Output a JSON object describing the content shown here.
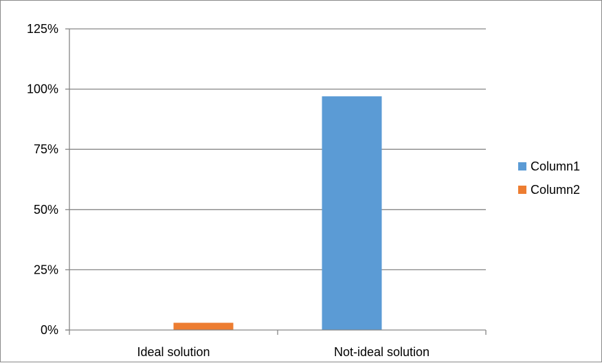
{
  "chart_data": {
    "type": "bar",
    "title": "",
    "xlabel": "",
    "ylabel": "",
    "categories": [
      "Ideal solution",
      "Not-ideal solution"
    ],
    "series": [
      {
        "name": "Column1",
        "color": "#5B9BD5",
        "values": [
          0,
          0.97
        ]
      },
      {
        "name": "Column2",
        "color": "#ED7D31",
        "values": [
          0.03,
          0
        ]
      }
    ],
    "ylim": [
      0,
      1.25
    ],
    "y_ticks": [
      0,
      0.25,
      0.5,
      0.75,
      1.0,
      1.25
    ],
    "y_tick_labels": [
      "0%",
      "25%",
      "50%",
      "75%",
      "100%",
      "125%"
    ],
    "grid": true,
    "legend_position": "right"
  }
}
